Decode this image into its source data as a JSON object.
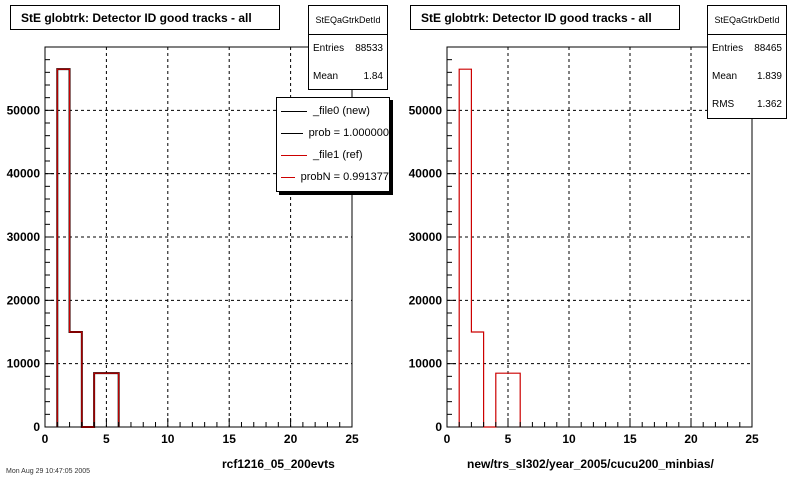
{
  "chart_data": [
    {
      "type": "bar",
      "title": "StE globtrk: Detector ID good tracks - all",
      "xlabel": "rcf1216_05_200evts",
      "ylabel": "",
      "xlim": [
        0,
        25
      ],
      "ylim": [
        0,
        60000
      ],
      "xticks": [
        "0",
        "5",
        "10",
        "15",
        "20",
        "25"
      ],
      "yticks": [
        "0",
        "10000",
        "20000",
        "30000",
        "40000",
        "50000"
      ],
      "grid": true,
      "bin_edges": [
        1,
        2,
        3,
        4,
        5,
        6
      ],
      "series": [
        {
          "name": "_file0 (new)",
          "color": "#000000",
          "values": [
            56500,
            15000,
            0,
            8500,
            8500
          ]
        },
        {
          "name": "_file1 (ref)",
          "color": "#cc0000",
          "values": [
            56500,
            15000,
            0,
            8500,
            8500
          ]
        }
      ],
      "stats": {
        "name": "StEQaGtrkDetId",
        "rows": [
          {
            "label": "Entries",
            "value": "88533"
          },
          {
            "label": "Mean",
            "value": "1.84"
          }
        ]
      },
      "legend": [
        {
          "label": "_file0 (new)",
          "color": "#000000"
        },
        {
          "label": "prob = 1.000000",
          "color": "#000000"
        },
        {
          "label": "_file1 (ref)",
          "color": "#cc0000"
        },
        {
          "label": "probN = 0.991377",
          "color": "#cc0000"
        }
      ]
    },
    {
      "type": "bar",
      "title": "StE globtrk: Detector ID good tracks - all",
      "xlabel": "new/trs_sl302/year_2005/cucu200_minbias/",
      "ylabel": "",
      "xlim": [
        0,
        25
      ],
      "ylim": [
        0,
        60000
      ],
      "xticks": [
        "0",
        "5",
        "10",
        "15",
        "20",
        "25"
      ],
      "yticks": [
        "0",
        "10000",
        "20000",
        "30000",
        "40000",
        "50000"
      ],
      "grid": true,
      "bin_edges": [
        1,
        2,
        3,
        4,
        5,
        6
      ],
      "series": [
        {
          "name": "",
          "color": "#cc0000",
          "values": [
            56500,
            15000,
            0,
            8500,
            8500
          ]
        }
      ],
      "stats": {
        "name": "StEQaGtrkDetId",
        "rows": [
          {
            "label": "Entries",
            "value": "88465"
          },
          {
            "label": "Mean",
            "value": "1.839"
          },
          {
            "label": "RMS",
            "value": "1.362"
          }
        ]
      }
    }
  ],
  "footer": "Mon Aug 29 10:47:05 2005"
}
